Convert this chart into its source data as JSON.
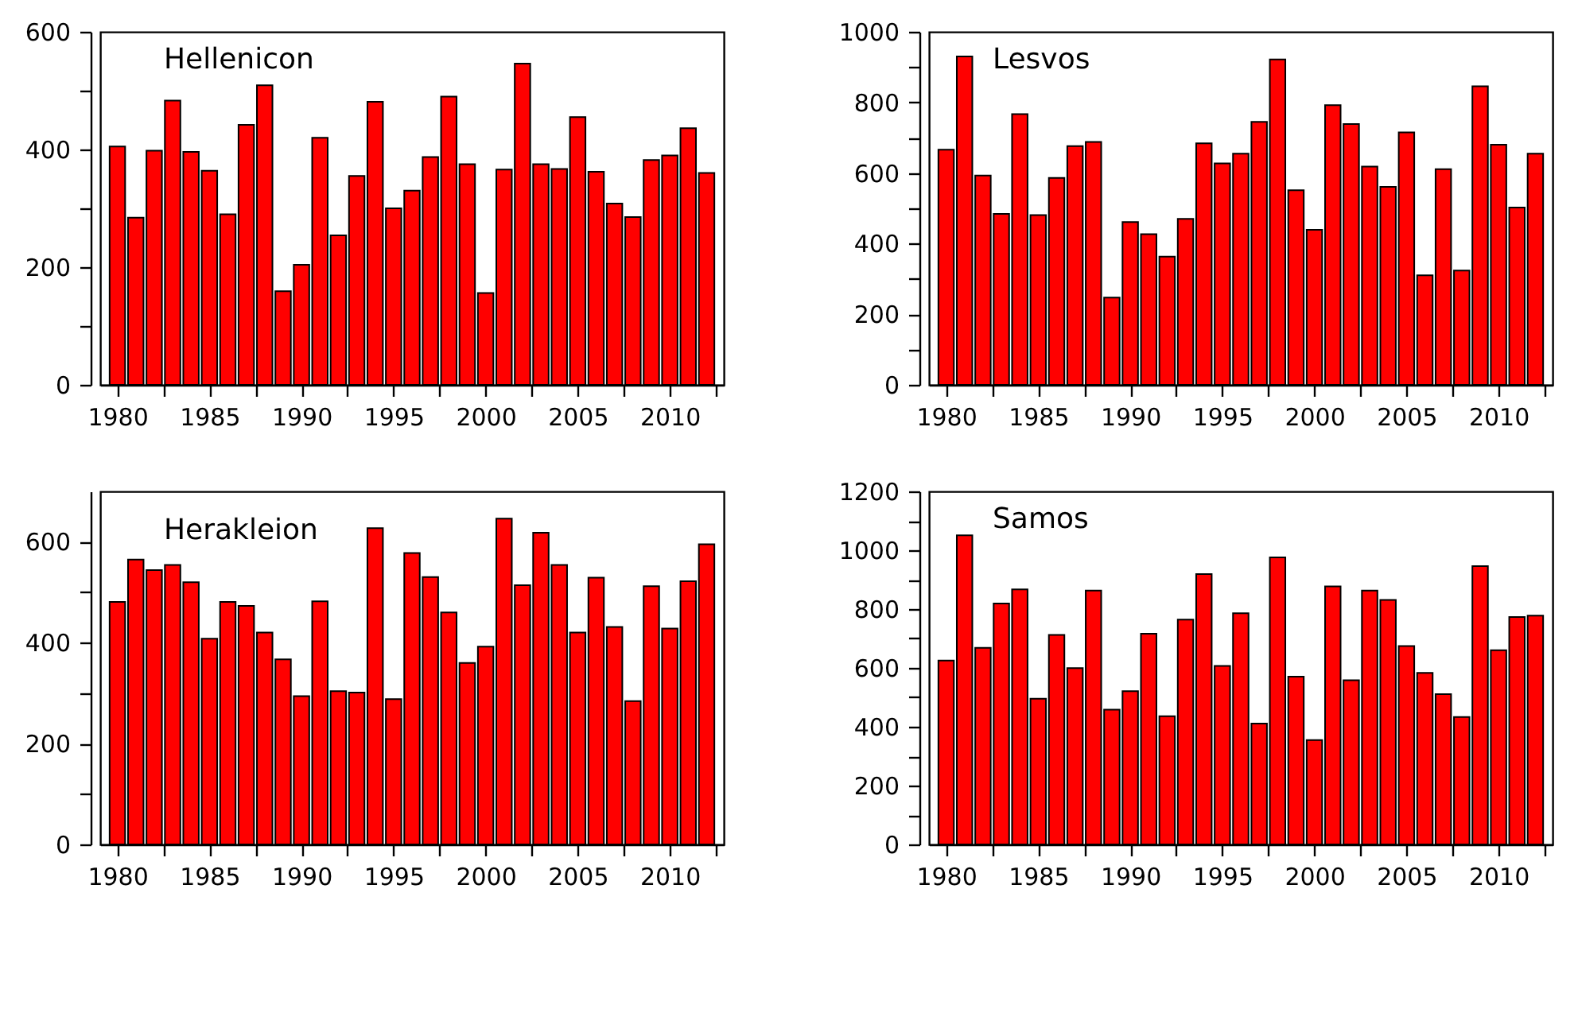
{
  "chart_data": [
    {
      "type": "bar",
      "title": "Hellenicon",
      "color": "#ff0000",
      "x": [
        1980,
        1981,
        1982,
        1983,
        1984,
        1985,
        1986,
        1987,
        1988,
        1989,
        1990,
        1991,
        1992,
        1993,
        1994,
        1995,
        1996,
        1997,
        1998,
        1999,
        2000,
        2001,
        2002,
        2003,
        2004,
        2005,
        2006,
        2007,
        2008,
        2009,
        2010,
        2011,
        2012
      ],
      "values": [
        405,
        284,
        398,
        483,
        396,
        364,
        290,
        442,
        509,
        159,
        204,
        420,
        254,
        355,
        481,
        300,
        330,
        387,
        490,
        375,
        156,
        366,
        546,
        375,
        367,
        455,
        362,
        308,
        285,
        382,
        390,
        436,
        360
      ],
      "xlim": [
        1979.5,
        2012.5
      ],
      "xticks": [
        1980,
        {
          "value": 1982.5,
          "label": null
        },
        1985,
        {
          "value": 1987.5,
          "label": null
        },
        1990,
        {
          "value": 1992.5,
          "label": null
        },
        1995,
        {
          "value": 1997.5,
          "label": null
        },
        2000,
        {
          "value": 2002.5,
          "label": null
        },
        2005,
        {
          "value": 2007.5,
          "label": null
        },
        2010,
        {
          "value": 2012.5,
          "label": null
        }
      ],
      "ylim": [
        0,
        600
      ],
      "yticks": [
        0,
        {
          "value": 100,
          "label": null
        },
        200,
        {
          "value": 300,
          "label": null
        },
        400,
        {
          "value": 500,
          "label": null
        },
        600
      ]
    },
    {
      "type": "bar",
      "title": "Lesvos",
      "color": "#ff0000",
      "x": [
        1980,
        1981,
        1982,
        1983,
        1984,
        1985,
        1986,
        1987,
        1988,
        1989,
        1990,
        1991,
        1992,
        1993,
        1994,
        1995,
        1996,
        1997,
        1998,
        1999,
        2000,
        2001,
        2002,
        2003,
        2004,
        2005,
        2006,
        2007,
        2008,
        2009,
        2010,
        2011,
        2012
      ],
      "values": [
        666,
        930,
        593,
        484,
        767,
        481,
        586,
        676,
        688,
        247,
        461,
        427,
        363,
        470,
        684,
        627,
        655,
        745,
        922,
        551,
        439,
        792,
        739,
        618,
        561,
        715,
        310,
        611,
        324,
        846,
        680,
        502,
        655
      ],
      "xlim": [
        1979.5,
        2012.5
      ],
      "xticks": [
        1980,
        {
          "value": 1982.5,
          "label": null
        },
        1985,
        {
          "value": 1987.5,
          "label": null
        },
        1990,
        {
          "value": 1992.5,
          "label": null
        },
        1995,
        {
          "value": 1997.5,
          "label": null
        },
        2000,
        {
          "value": 2002.5,
          "label": null
        },
        2005,
        {
          "value": 2007.5,
          "label": null
        },
        2010,
        {
          "value": 2012.5,
          "label": null
        }
      ],
      "ylim": [
        0,
        1000
      ],
      "yticks": [
        0,
        {
          "value": 100,
          "label": null
        },
        200,
        {
          "value": 300,
          "label": null
        },
        400,
        {
          "value": 500,
          "label": null
        },
        600,
        {
          "value": 700,
          "label": null
        },
        800,
        {
          "value": 900,
          "label": null
        },
        1000
      ]
    },
    {
      "type": "bar",
      "title": "Herakleion",
      "color": "#ff0000",
      "x": [
        1980,
        1981,
        1982,
        1983,
        1984,
        1985,
        1986,
        1987,
        1988,
        1989,
        1990,
        1991,
        1992,
        1993,
        1994,
        1995,
        1996,
        1997,
        1998,
        1999,
        2000,
        2001,
        2002,
        2003,
        2004,
        2005,
        2006,
        2007,
        2008,
        2009,
        2010,
        2011,
        2012
      ],
      "values": [
        481,
        565,
        544,
        554,
        520,
        408,
        481,
        473,
        420,
        367,
        294,
        482,
        304,
        301,
        627,
        288,
        578,
        530,
        460,
        360,
        392,
        646,
        514,
        618,
        554,
        420,
        529,
        431,
        284,
        512,
        428,
        522,
        595
      ],
      "xlim": [
        1979.5,
        2012.5
      ],
      "xticks": [
        1980,
        {
          "value": 1982.5,
          "label": null
        },
        1985,
        {
          "value": 1987.5,
          "label": null
        },
        1990,
        {
          "value": 1992.5,
          "label": null
        },
        1995,
        {
          "value": 1997.5,
          "label": null
        },
        2000,
        {
          "value": 2002.5,
          "label": null
        },
        2005,
        {
          "value": 2007.5,
          "label": null
        },
        2010,
        {
          "value": 2012.5,
          "label": null
        }
      ],
      "ylim": [
        0,
        700
      ],
      "yticks": [
        0,
        {
          "value": 100,
          "label": null
        },
        200,
        {
          "value": 300,
          "label": null
        },
        400,
        {
          "value": 500,
          "label": null
        },
        600
      ]
    },
    {
      "type": "bar",
      "title": "Samos",
      "color": "#ff0000",
      "x": [
        1980,
        1981,
        1982,
        1983,
        1984,
        1985,
        1986,
        1987,
        1988,
        1989,
        1990,
        1991,
        1992,
        1993,
        1994,
        1995,
        1996,
        1997,
        1998,
        1999,
        2000,
        2001,
        2002,
        2003,
        2004,
        2005,
        2006,
        2007,
        2008,
        2009,
        2010,
        2011,
        2012
      ],
      "values": [
        625,
        1051,
        668,
        819,
        867,
        495,
        712,
        599,
        863,
        458,
        521,
        716,
        436,
        764,
        919,
        607,
        786,
        411,
        976,
        570,
        355,
        877,
        558,
        863,
        831,
        674,
        583,
        511,
        433,
        946,
        660,
        773,
        778
      ],
      "xlim": [
        1979.5,
        2012.5
      ],
      "xticks": [
        1980,
        {
          "value": 1982.5,
          "label": null
        },
        1985,
        {
          "value": 1987.5,
          "label": null
        },
        1990,
        {
          "value": 1992.5,
          "label": null
        },
        1995,
        {
          "value": 1997.5,
          "label": null
        },
        2000,
        {
          "value": 2002.5,
          "label": null
        },
        2005,
        {
          "value": 2007.5,
          "label": null
        },
        2010,
        {
          "value": 2012.5,
          "label": null
        }
      ],
      "ylim": [
        0,
        1200
      ],
      "yticks": [
        0,
        {
          "value": 100,
          "label": null
        },
        200,
        {
          "value": 300,
          "label": null
        },
        400,
        {
          "value": 500,
          "label": null
        },
        600,
        {
          "value": 700,
          "label": null
        },
        800,
        {
          "value": 900,
          "label": null
        },
        1000,
        {
          "value": 1100,
          "label": null
        },
        1200
      ]
    }
  ]
}
